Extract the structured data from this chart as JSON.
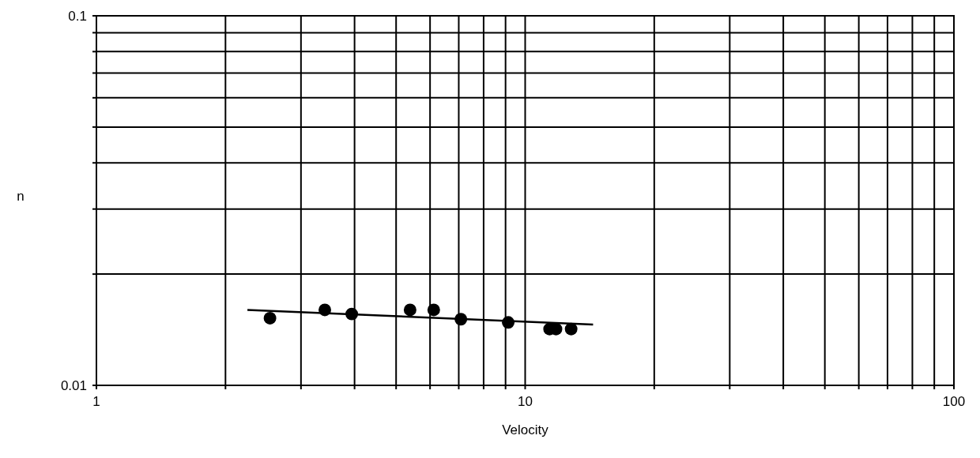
{
  "chart_data": {
    "type": "scatter",
    "xlabel": "Velocity",
    "ylabel": "n",
    "log": "xy",
    "grid": true,
    "marker": "circle",
    "xlim": [
      1,
      100
    ],
    "ylim": [
      0.01,
      0.1
    ],
    "xticks": [
      1,
      {
        "value": 2,
        "label": null
      },
      {
        "value": 3,
        "label": null
      },
      {
        "value": 4,
        "label": null
      },
      {
        "value": 5,
        "label": null
      },
      {
        "value": 6,
        "label": null
      },
      {
        "value": 7,
        "label": null
      },
      {
        "value": 8,
        "label": null
      },
      {
        "value": 9,
        "label": null
      },
      10,
      {
        "value": 20,
        "label": null
      },
      {
        "value": 30,
        "label": null
      },
      {
        "value": 40,
        "label": null
      },
      {
        "value": 50,
        "label": null
      },
      {
        "value": 60,
        "label": null
      },
      {
        "value": 70,
        "label": null
      },
      {
        "value": 80,
        "label": null
      },
      {
        "value": 90,
        "label": null
      },
      100
    ],
    "yticks": [
      0.01,
      {
        "value": 0.02,
        "label": null
      },
      {
        "value": 0.03,
        "label": null
      },
      {
        "value": 0.04,
        "label": null
      },
      {
        "value": 0.05,
        "label": null
      },
      {
        "value": 0.06,
        "label": null
      },
      {
        "value": 0.07,
        "label": null
      },
      {
        "value": 0.08,
        "label": null
      },
      {
        "value": 0.09,
        "label": null
      },
      0.1
    ],
    "series": [
      {
        "color": "#000000",
        "x": [
          2.54,
          3.41,
          3.94,
          5.39,
          6.12,
          7.08,
          9.13,
          11.4,
          11.8,
          12.8
        ],
        "values": [
          0.0152,
          0.016,
          0.0156,
          0.016,
          0.016,
          0.0151,
          0.0148,
          0.0142,
          0.0142,
          0.0142
        ]
      },
      {
        "type": "line",
        "color": "#000000",
        "marker": "none",
        "x": [
          2.25,
          14.4
        ],
        "values": [
          0.016,
          0.0146
        ]
      }
    ]
  }
}
